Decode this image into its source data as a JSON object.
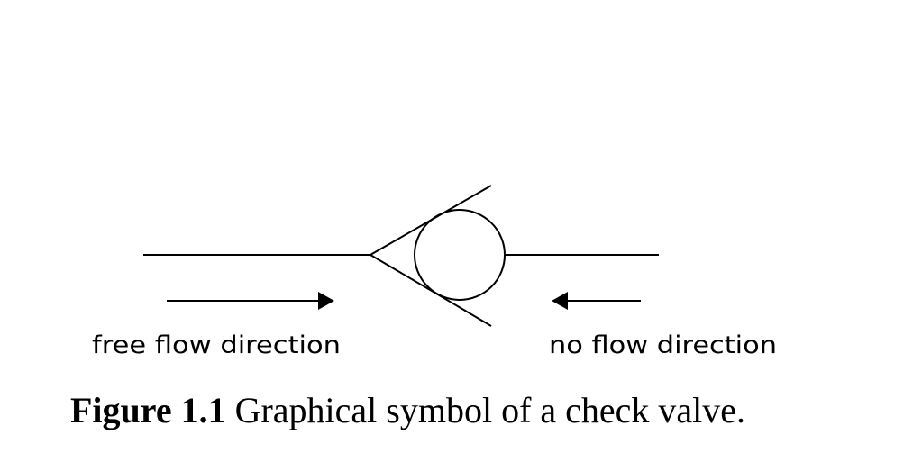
{
  "diagram": {
    "left_label": "free flow direction",
    "right_label": "no flow direction",
    "line_color": "#000000"
  },
  "caption": {
    "number": "Figure 1.1",
    "text": " Graphical symbol of a check valve."
  }
}
